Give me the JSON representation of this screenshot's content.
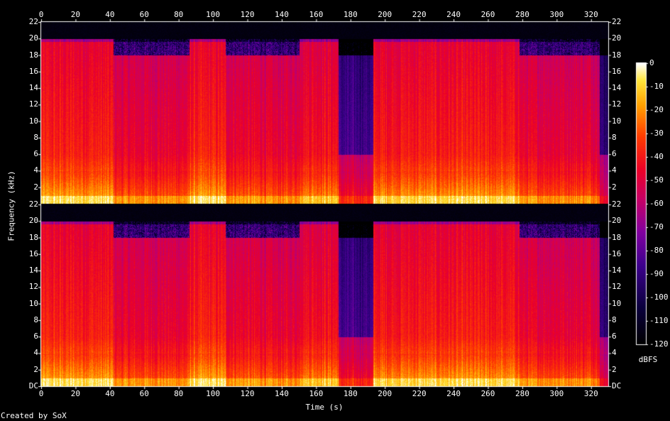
{
  "chart_data": {
    "type": "heatmap",
    "xlabel": "Time (s)",
    "ylabel": "Frequency (kHz)",
    "credit": "Created by SoX",
    "colorbar_label": "dBFS",
    "x_ticks": [
      "0",
      "20",
      "40",
      "60",
      "80",
      "100",
      "120",
      "140",
      "160",
      "180",
      "200",
      "220",
      "240",
      "260",
      "280",
      "300",
      "320"
    ],
    "xlim": [
      0,
      330
    ],
    "channels": [
      {
        "y_ticks": [
          "22",
          "20",
          "18",
          "16",
          "14",
          "12",
          "10",
          "8",
          "6",
          "4",
          "2"
        ],
        "ylim": [
          0,
          22
        ]
      },
      {
        "y_ticks": [
          "22",
          "20",
          "18",
          "16",
          "14",
          "12",
          "10",
          "8",
          "6",
          "4",
          "2",
          "DC"
        ],
        "ylim": [
          0,
          22
        ]
      }
    ],
    "colorbar_ticks": [
      "0",
      "-10",
      "-20",
      "-30",
      "-40",
      "-50",
      "-60",
      "-70",
      "-80",
      "-90",
      "-100",
      "-110",
      "-120"
    ],
    "colorbar_range_dbfs": [
      -120,
      0
    ],
    "cutoff_khz": 20,
    "segments": [
      {
        "start": 0,
        "end": 42,
        "level": 0.95
      },
      {
        "start": 42,
        "end": 86,
        "level": 0.72
      },
      {
        "start": 86,
        "end": 107,
        "level": 0.95
      },
      {
        "start": 107,
        "end": 130,
        "level": 0.75
      },
      {
        "start": 130,
        "end": 150,
        "level": 0.7
      },
      {
        "start": 150,
        "end": 173,
        "level": 0.88
      },
      {
        "start": 173,
        "end": 193,
        "level": 0.4
      },
      {
        "start": 193,
        "end": 278,
        "level": 0.92
      },
      {
        "start": 278,
        "end": 325,
        "level": 0.72
      },
      {
        "start": 325,
        "end": 330,
        "level": 0.25
      }
    ]
  }
}
